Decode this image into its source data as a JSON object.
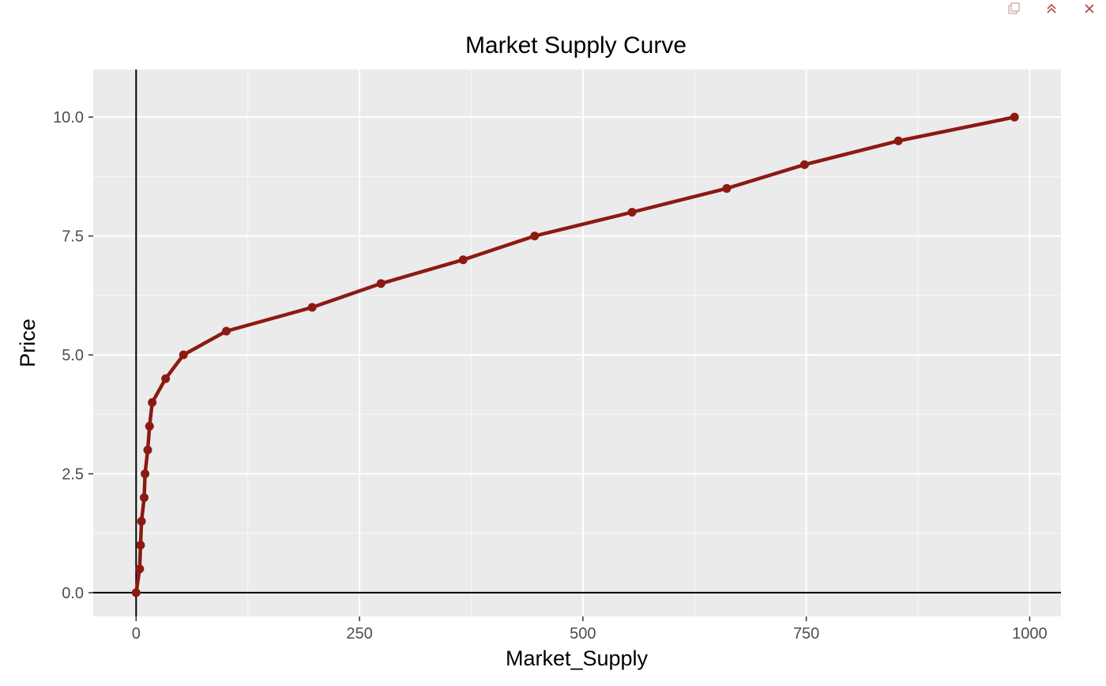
{
  "toolbar": {
    "buttons": [
      {
        "icon": "popout-icon"
      },
      {
        "icon": "collapse-up-icon"
      },
      {
        "icon": "close-icon"
      }
    ],
    "icon_color": "#b34a4a"
  },
  "colors": {
    "panel_background": "#ebebeb",
    "grid_major": "#ffffff",
    "line": "#8b1a12",
    "axis_ref": "#000000",
    "tick_text": "#4d4d4d"
  },
  "chart_data": {
    "type": "line",
    "title": "Market Supply Curve",
    "xlabel": "Market_Supply",
    "ylabel": "Price",
    "xlim": [
      -48,
      1035
    ],
    "ylim": [
      -0.5,
      11.0
    ],
    "x_ticks": [
      0,
      250,
      500,
      750,
      1000
    ],
    "x_tick_labels": [
      "0",
      "250",
      "500",
      "750",
      "1000"
    ],
    "y_ticks": [
      0,
      2.5,
      5,
      7.5,
      10
    ],
    "y_tick_labels": [
      "0.0",
      "2.5",
      "5.0",
      "7.5",
      "10.0"
    ],
    "x_minor": [
      125,
      375,
      625,
      875
    ],
    "y_minor": [
      1.25,
      3.75,
      6.25,
      8.75
    ],
    "reference_lines": {
      "x": 0,
      "y": 0
    },
    "grid": true,
    "legend": "none",
    "series": [
      {
        "x": [
          0,
          4,
          5,
          6,
          9,
          10,
          13,
          15,
          18,
          33,
          53,
          101,
          197,
          274,
          366,
          446,
          555,
          661,
          748,
          853,
          983
        ],
        "y": [
          0,
          0.5,
          1.0,
          1.5,
          2.0,
          2.5,
          3.0,
          3.5,
          4.0,
          4.5,
          5.0,
          5.5,
          6.0,
          6.5,
          7.0,
          7.5,
          8.0,
          8.5,
          9.0,
          9.5,
          10.0
        ]
      }
    ]
  }
}
